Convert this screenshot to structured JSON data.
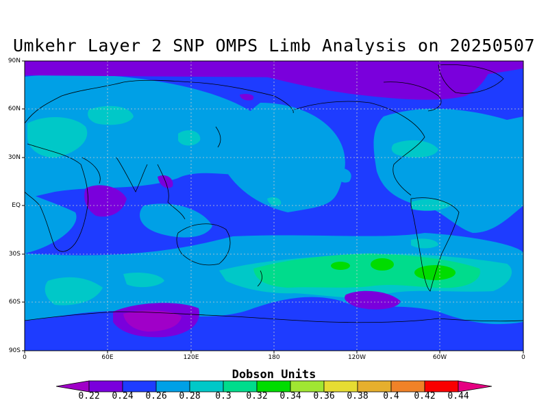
{
  "title": "Umkehr Layer 2 SNP OMPS Limb Analysis on 20250507",
  "lat_labels": [
    "90N",
    "60N",
    "30N",
    "EQ",
    "30S",
    "60S",
    "90S"
  ],
  "lon_labels": [
    "0",
    "60E",
    "120E",
    "180",
    "120W",
    "60W",
    "0"
  ],
  "colorbar": {
    "title": "Dobson Units",
    "labels": [
      "0.22",
      "0.24",
      "0.26",
      "0.28",
      "0.3",
      "0.32",
      "0.34",
      "0.36",
      "0.38",
      "0.4",
      "0.42",
      "0.44"
    ],
    "colors": [
      "#a000c8",
      "#7a00dc",
      "#1e3cff",
      "#00a0e6",
      "#00c8c8",
      "#00dc8c",
      "#00dc00",
      "#a0e632",
      "#e6dc32",
      "#e6af2d",
      "#f08228",
      "#fa0000",
      "#e60082"
    ]
  },
  "map_colors": {
    "background": "#1e3cff",
    "level_028": "#00a0e6",
    "level_030": "#00c8c8",
    "level_032": "#00dc8c",
    "level_034": "#00dc00",
    "low_022": "#a000c8",
    "low_024": "#7a00dc"
  }
}
